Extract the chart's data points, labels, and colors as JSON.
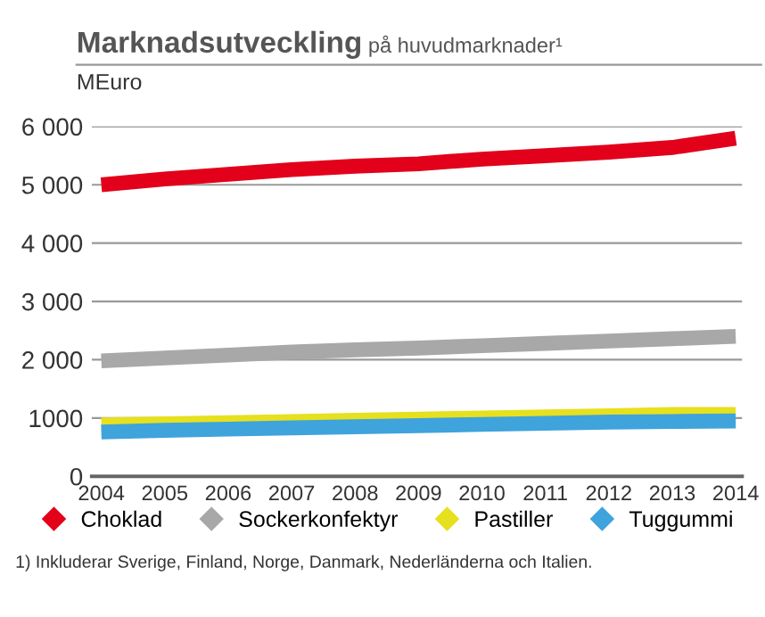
{
  "chart_data": {
    "type": "line",
    "title": "Marknadsutveckling",
    "subtitle": "på huvudmarknader¹",
    "ylabel": "MEuro",
    "categories": [
      "2004",
      "2005",
      "2006",
      "2007",
      "2008",
      "2009",
      "2010",
      "2011",
      "2012",
      "2013",
      "2014"
    ],
    "series": [
      {
        "name": "Choklad",
        "color": "#e2001a",
        "values": [
          5000,
          5100,
          5180,
          5260,
          5320,
          5360,
          5440,
          5500,
          5560,
          5640,
          5800
        ]
      },
      {
        "name": "Sockerkonfektyr",
        "color": "#a8a8a8",
        "values": [
          1980,
          2030,
          2080,
          2130,
          2170,
          2200,
          2240,
          2280,
          2320,
          2360,
          2400
        ]
      },
      {
        "name": "Pastiller",
        "color": "#e6e01e",
        "values": [
          880,
          900,
          920,
          940,
          960,
          980,
          1000,
          1020,
          1040,
          1060,
          1060
        ]
      },
      {
        "name": "Tuggummi",
        "color": "#3fa3dc",
        "values": [
          760,
          790,
          810,
          830,
          850,
          870,
          890,
          910,
          930,
          940,
          950
        ]
      }
    ],
    "ylim": [
      0,
      6000
    ],
    "yticks": [
      0,
      {
        "value": 1000,
        "label": "1000"
      },
      {
        "value": 2000,
        "label": "2 000"
      },
      {
        "value": 3000,
        "label": "3 000"
      },
      {
        "value": 4000,
        "label": "4 000"
      },
      {
        "value": 5000,
        "label": "5 000"
      },
      {
        "value": 6000,
        "label": "6 000"
      }
    ],
    "grid": "y",
    "legend": "bottom",
    "marker": "none",
    "line_style": "solid",
    "annotations": [
      "1) Inkluderar Sverige, Finland, Norge, Danmark, Nederländerna och Italien."
    ]
  }
}
